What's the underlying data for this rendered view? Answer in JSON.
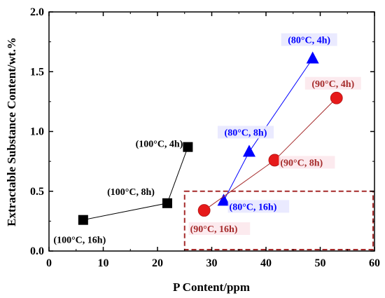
{
  "chart_data": {
    "type": "scatter",
    "title": "",
    "xlabel": "P Content/ppm",
    "ylabel": "Extractable Substance Content/wt.%",
    "xlim": [
      0,
      60
    ],
    "ylim": [
      0,
      2.0
    ],
    "xticks": [
      "0",
      "10",
      "20",
      "30",
      "40",
      "50",
      "60"
    ],
    "yticks": [
      "0.0",
      "0.5",
      "1.0",
      "1.5",
      "2.0"
    ],
    "grid": false,
    "series": [
      {
        "marker": "square",
        "color": "#000000",
        "points": [
          {
            "x": 6.3,
            "y": 0.26,
            "label": "(100°C, 16h)"
          },
          {
            "x": 21.8,
            "y": 0.4,
            "label": "(100°C, 8h)"
          },
          {
            "x": 25.6,
            "y": 0.87,
            "label": "(100°C, 4h)"
          }
        ]
      },
      {
        "marker": "triangle",
        "color": "#0000ff",
        "points": [
          {
            "x": 32.2,
            "y": 0.42,
            "label": "(80°C, 16h)"
          },
          {
            "x": 36.9,
            "y": 0.83,
            "label": "(80°C, 8h)"
          },
          {
            "x": 48.6,
            "y": 1.61,
            "label": "(80°C, 4h)"
          }
        ]
      },
      {
        "marker": "circle",
        "color": "#e61a1a",
        "points": [
          {
            "x": 28.6,
            "y": 0.34,
            "label": "(90°C, 16h)"
          },
          {
            "x": 41.6,
            "y": 0.76,
            "label": "(90°C, 8h)"
          },
          {
            "x": 53.0,
            "y": 1.28,
            "label": "(90°C, 4h)"
          }
        ]
      }
    ],
    "highlight_region": {
      "x": [
        25,
        60
      ],
      "y": [
        0,
        0.5
      ],
      "color": "#a52a2a",
      "style": "dashed"
    }
  }
}
